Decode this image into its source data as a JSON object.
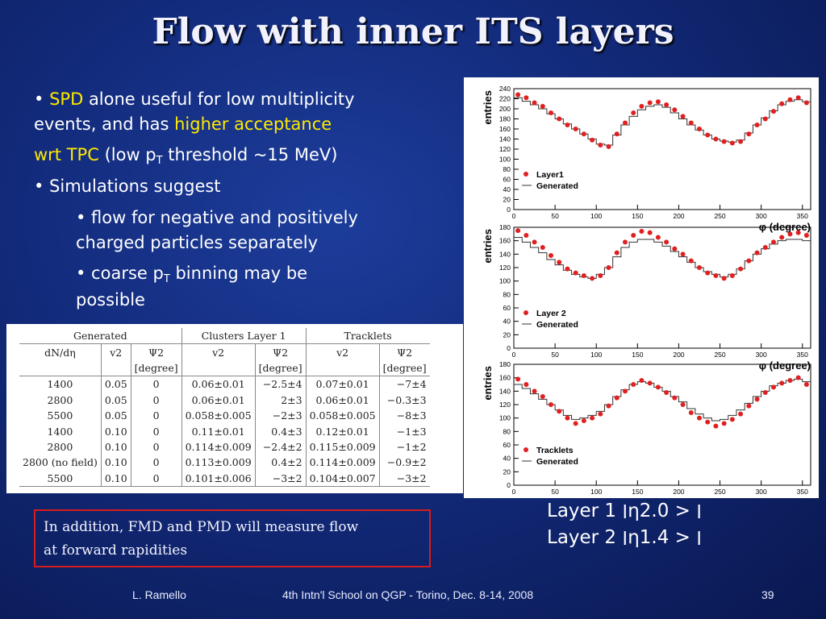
{
  "slide": {
    "title": "Flow with inner ITS layers",
    "bullets": {
      "b1_bullet": "•",
      "b1_spd": "SPD",
      "b1_rest": "alone useful for low multiplicity",
      "b1_line2": "events, and has",
      "b1_higher": "higher acceptance",
      "b1_wrt": "wrt TPC",
      "b1_low": "(low p",
      "b1_sub": "T",
      "b1_thresh": "threshold ~15 MeV)",
      "b2": "• Simulations suggest",
      "b3_line1": "• flow for negative and positively",
      "b3_line2": "charged particles separately",
      "b4_pre": "• coarse p",
      "b4_sub": "T",
      "b4_post": "binning may be",
      "b4_line2": "possible"
    },
    "note_line1": "In addition, FMD and PMD will measure flow",
    "note_line2": "at forward rapidities",
    "eta_line1": "Layer 1 ׀η׀ < 2.0",
    "eta_line2": "Layer 2 ׀η׀ < 1.4",
    "footer": {
      "author": "L. Ramello",
      "event": "4th Intn'l School on QGP  - Torino, Dec. 8-14, 2008",
      "page": "39"
    }
  },
  "table": {
    "groups": [
      "Generated",
      "Clusters Layer 1",
      "Tracklets"
    ],
    "subheaders": [
      "dN/dη",
      "v2",
      "Ψ2",
      "v2",
      "Ψ2",
      "v2",
      "Ψ2"
    ],
    "subunits": [
      "",
      "",
      "[degree]",
      "",
      "[degree]",
      "",
      "[degree]"
    ],
    "rows": [
      [
        "1400",
        "0.05",
        "0",
        "0.06±0.01",
        "−2.5±4",
        "0.07±0.01",
        "−7±4"
      ],
      [
        "2800",
        "0.05",
        "0",
        "0.06±0.01",
        "2±3",
        "0.06±0.01",
        "−0.3±3"
      ],
      [
        "5500",
        "0.05",
        "0",
        "0.058±0.005",
        "−2±3",
        "0.058±0.005",
        "−8±3"
      ],
      [
        "1400",
        "0.10",
        "0",
        "0.11±0.01",
        "0.4±3",
        "0.12±0.01",
        "−1±3"
      ],
      [
        "2800",
        "0.10",
        "0",
        "0.114±0.009",
        "−2.4±2",
        "0.115±0.009",
        "−1±2"
      ],
      [
        "2800 (no field)",
        "0.10",
        "0",
        "0.113±0.009",
        "0.4±2",
        "0.114±0.009",
        "−0.9±2"
      ],
      [
        "5500",
        "0.10",
        "0",
        "0.101±0.006",
        "−3±2",
        "0.104±0.007",
        "−3±2"
      ]
    ]
  },
  "chart_data": [
    {
      "type": "scatter",
      "ylabel": "entries",
      "xlabel": "φ (degree)",
      "xlim": [
        0,
        360
      ],
      "ylim": [
        0,
        240
      ],
      "xticks": [
        0,
        50,
        100,
        150,
        200,
        250,
        300,
        350
      ],
      "yticks": [
        0,
        20,
        40,
        60,
        80,
        100,
        120,
        140,
        160,
        180,
        200,
        220,
        240
      ],
      "legend": "bottom-left",
      "series": [
        {
          "name": "Layer1",
          "kind": "points",
          "color": "#e02020",
          "x": [
            5,
            15,
            25,
            35,
            45,
            55,
            65,
            75,
            85,
            95,
            105,
            115,
            125,
            135,
            145,
            155,
            165,
            175,
            185,
            195,
            205,
            215,
            225,
            235,
            245,
            255,
            265,
            275,
            285,
            295,
            305,
            315,
            325,
            335,
            345,
            355
          ],
          "y": [
            228,
            222,
            212,
            205,
            192,
            180,
            168,
            160,
            150,
            138,
            128,
            125,
            150,
            172,
            192,
            205,
            212,
            214,
            208,
            198,
            185,
            172,
            160,
            148,
            140,
            135,
            132,
            135,
            150,
            168,
            180,
            195,
            210,
            218,
            222,
            212
          ]
        },
        {
          "name": "Generated",
          "kind": "step",
          "color": "#555555",
          "x": [
            5,
            15,
            25,
            35,
            45,
            55,
            65,
            75,
            85,
            95,
            105,
            115,
            125,
            135,
            145,
            155,
            165,
            175,
            185,
            195,
            205,
            215,
            225,
            235,
            245,
            255,
            265,
            275,
            285,
            295,
            305,
            315,
            325,
            335,
            345,
            355
          ],
          "y": [
            222,
            215,
            208,
            200,
            190,
            180,
            170,
            160,
            150,
            140,
            130,
            128,
            148,
            168,
            185,
            198,
            205,
            208,
            203,
            192,
            180,
            168,
            158,
            148,
            140,
            136,
            134,
            138,
            152,
            168,
            182,
            196,
            208,
            215,
            218,
            214
          ]
        }
      ]
    },
    {
      "type": "scatter",
      "ylabel": "entries",
      "xlabel": "φ (degree)",
      "xlim": [
        0,
        360
      ],
      "ylim": [
        0,
        180
      ],
      "xticks": [
        0,
        50,
        100,
        150,
        200,
        250,
        300,
        350
      ],
      "yticks": [
        0,
        20,
        40,
        60,
        80,
        100,
        120,
        140,
        160,
        180
      ],
      "legend": "bottom-left",
      "series": [
        {
          "name": "Layer 2",
          "kind": "points",
          "color": "#e02020",
          "x": [
            5,
            15,
            25,
            35,
            45,
            55,
            65,
            75,
            85,
            95,
            105,
            115,
            125,
            135,
            145,
            155,
            165,
            175,
            185,
            195,
            205,
            215,
            225,
            235,
            245,
            255,
            265,
            275,
            285,
            295,
            305,
            315,
            325,
            335,
            345,
            355
          ],
          "y": [
            175,
            168,
            158,
            150,
            138,
            128,
            118,
            112,
            108,
            104,
            108,
            120,
            142,
            158,
            168,
            174,
            172,
            165,
            158,
            148,
            140,
            130,
            120,
            112,
            108,
            104,
            108,
            118,
            130,
            142,
            150,
            158,
            165,
            170,
            172,
            168
          ]
        },
        {
          "name": "Generated",
          "kind": "step",
          "color": "#555555",
          "x": [
            5,
            15,
            25,
            35,
            45,
            55,
            65,
            75,
            85,
            95,
            105,
            115,
            125,
            135,
            145,
            155,
            165,
            175,
            185,
            195,
            205,
            215,
            225,
            235,
            245,
            255,
            265,
            275,
            285,
            295,
            305,
            315,
            325,
            335,
            345,
            355
          ],
          "y": [
            165,
            158,
            150,
            142,
            132,
            124,
            116,
            110,
            106,
            104,
            110,
            120,
            136,
            150,
            158,
            162,
            162,
            158,
            152,
            144,
            136,
            128,
            120,
            114,
            110,
            106,
            110,
            118,
            130,
            140,
            148,
            155,
            160,
            162,
            162,
            160
          ]
        }
      ]
    },
    {
      "type": "scatter",
      "ylabel": "entries",
      "xlabel": "φ (degree)",
      "xlim": [
        0,
        360
      ],
      "ylim": [
        0,
        180
      ],
      "xticks": [
        0,
        50,
        100,
        150,
        200,
        250,
        300,
        350
      ],
      "yticks": [
        0,
        20,
        40,
        60,
        80,
        100,
        120,
        140,
        160,
        180
      ],
      "legend": "bottom-left",
      "series": [
        {
          "name": "Tracklets",
          "kind": "points",
          "color": "#e02020",
          "x": [
            5,
            15,
            25,
            35,
            45,
            55,
            65,
            75,
            85,
            95,
            105,
            115,
            125,
            135,
            145,
            155,
            165,
            175,
            185,
            195,
            205,
            215,
            225,
            235,
            245,
            255,
            265,
            275,
            285,
            295,
            305,
            315,
            325,
            335,
            345,
            355
          ],
          "y": [
            158,
            150,
            140,
            132,
            120,
            110,
            100,
            92,
            96,
            100,
            106,
            118,
            130,
            140,
            150,
            156,
            152,
            146,
            138,
            130,
            120,
            108,
            100,
            94,
            88,
            92,
            98,
            106,
            118,
            128,
            138,
            146,
            152,
            156,
            160,
            150
          ]
        },
        {
          "name": "Generated",
          "kind": "step",
          "color": "#555555",
          "x": [
            5,
            15,
            25,
            35,
            45,
            55,
            65,
            75,
            85,
            95,
            105,
            115,
            125,
            135,
            145,
            155,
            165,
            175,
            185,
            195,
            205,
            215,
            225,
            235,
            245,
            255,
            265,
            275,
            285,
            295,
            305,
            315,
            325,
            335,
            345,
            355
          ],
          "y": [
            150,
            144,
            136,
            128,
            120,
            112,
            104,
            98,
            100,
            104,
            110,
            120,
            132,
            142,
            150,
            154,
            152,
            146,
            140,
            132,
            124,
            114,
            106,
            100,
            96,
            98,
            104,
            112,
            122,
            132,
            140,
            148,
            152,
            156,
            158,
            154
          ]
        }
      ]
    }
  ]
}
